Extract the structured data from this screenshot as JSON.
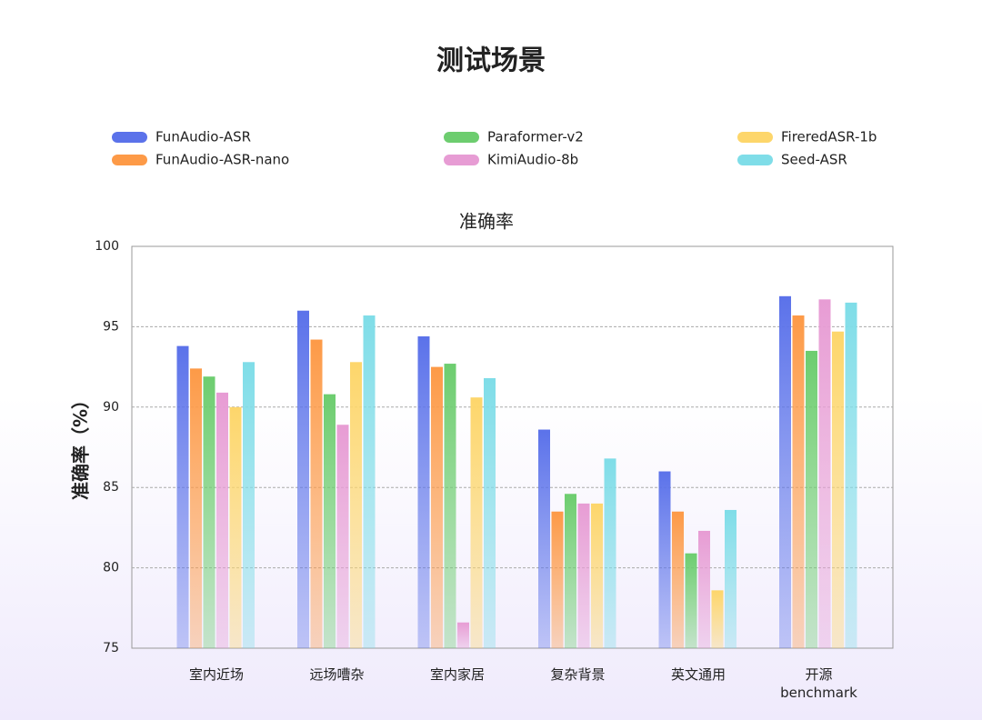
{
  "chart_data": {
    "type": "bar",
    "title": "测试场景",
    "subtitle": "准确率",
    "y_label": "准确率（%）",
    "categories": [
      "室内近场",
      "远场嘈杂",
      "室内家居",
      "复杂背景",
      "英文通用",
      "开源\nbenchmark"
    ],
    "series": [
      {
        "name": "FunAudio-ASR",
        "color": "#5b72ea",
        "values": [
          93.8,
          96.0,
          94.4,
          88.6,
          86.0,
          96.9
        ]
      },
      {
        "name": "FunAudio-ASR-nano",
        "color": "#fd9a47",
        "values": [
          92.4,
          94.2,
          92.5,
          83.5,
          83.5,
          95.7
        ]
      },
      {
        "name": "Paraformer-v2",
        "color": "#6dcd6f",
        "values": [
          91.9,
          90.8,
          92.7,
          84.6,
          80.9,
          93.5
        ]
      },
      {
        "name": "KimiAudio-8b",
        "color": "#e79cd4",
        "values": [
          90.9,
          88.9,
          76.6,
          84.0,
          82.3,
          96.7
        ]
      },
      {
        "name": "FireredASR-1b",
        "color": "#fdd66b",
        "values": [
          90.0,
          92.8,
          90.6,
          84.0,
          78.6,
          94.7
        ]
      },
      {
        "name": "Seed-ASR",
        "color": "#7fdde8",
        "values": [
          92.8,
          95.7,
          91.8,
          86.8,
          83.6,
          96.5
        ]
      }
    ],
    "ylim": [
      75,
      100
    ],
    "yticks": [
      75,
      80,
      85,
      90,
      95,
      100
    ],
    "grid": true
  }
}
